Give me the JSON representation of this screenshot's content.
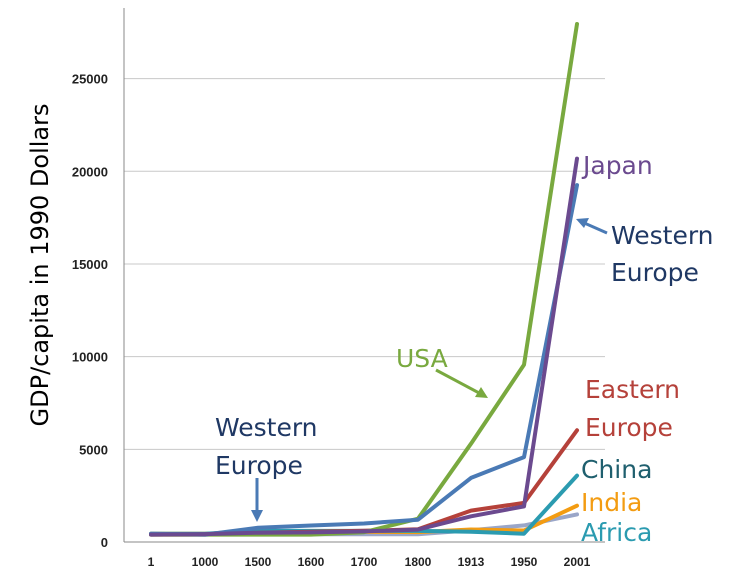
{
  "chart_data": {
    "type": "line",
    "ylabel": "GDP/capita in 1990 Dollars",
    "xlabel": "",
    "categories": [
      "1",
      "1000",
      "1500",
      "1600",
      "1700",
      "1800",
      "1913",
      "1950",
      "2001"
    ],
    "ylim": [
      0,
      28000
    ],
    "yticks": [
      0,
      5000,
      10000,
      15000,
      20000,
      25000
    ],
    "grid": true,
    "series": [
      {
        "name": "Africa",
        "color": "#9aa6c8",
        "values": [
          430,
          425,
          414,
          422,
          421,
          420,
          637,
          894,
          1489
        ]
      },
      {
        "name": "India",
        "color": "#f39c12",
        "values": [
          450,
          450,
          550,
          550,
          550,
          533,
          673,
          619,
          1957
        ]
      },
      {
        "name": "China",
        "color": "#2b9bb0",
        "values": [
          450,
          450,
          600,
          600,
          600,
          600,
          552,
          448,
          3583
        ]
      },
      {
        "name": "Eastern Europe",
        "color": "#b5413a",
        "values": [
          400,
          400,
          496,
          548,
          606,
          683,
          1695,
          2111,
          6027
        ]
      },
      {
        "name": "USA",
        "color": "#79a93f",
        "values": [
          400,
          400,
          400,
          400,
          527,
          1257,
          5301,
          9561,
          27948
        ]
      },
      {
        "name": "Western Europe",
        "color": "#4a7ab5",
        "values": [
          450,
          400,
          771,
          889,
          997,
          1202,
          3458,
          4579,
          19256
        ]
      },
      {
        "name": "Japan",
        "color": "#6b4a8f",
        "values": [
          400,
          425,
          500,
          520,
          570,
          669,
          1387,
          1921,
          20683
        ]
      }
    ],
    "annotations": [
      {
        "text": "Japan",
        "color": "#6b4a8f"
      },
      {
        "text_lines": [
          "Western",
          "Europe"
        ],
        "color": "#1f3864"
      },
      {
        "text": "USA",
        "color": "#79a93f"
      },
      {
        "text_lines": [
          "Eastern",
          "Europe"
        ],
        "color": "#b5413a"
      },
      {
        "text": "China",
        "color": "#1f5f6e"
      },
      {
        "text": "India",
        "color": "#f39c12"
      },
      {
        "text": "Africa",
        "color": "#2b9bb0"
      },
      {
        "text_lines": [
          "Western",
          "Europe"
        ],
        "color": "#1f3864"
      }
    ],
    "arrow_color": "#4a7ab5",
    "usa_arrow_color": "#79a93f"
  }
}
